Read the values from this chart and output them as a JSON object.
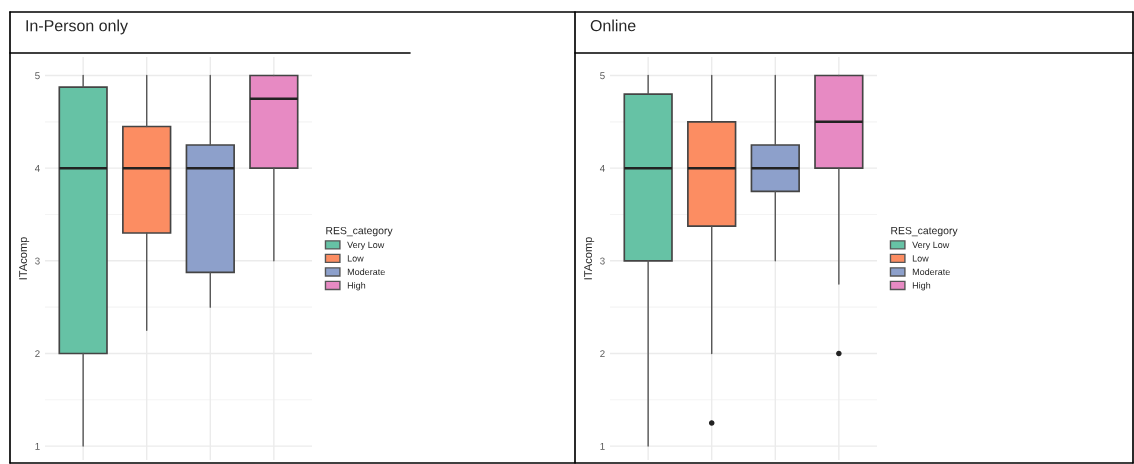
{
  "chart_data": [
    {
      "type": "box",
      "title": "In-Person only",
      "ylabel": "ITAcomp",
      "legend_title": "RES_category",
      "legend": "right",
      "grid": true,
      "ylim": [
        0.85,
        5.2
      ],
      "yticks": [
        1,
        2,
        3,
        4,
        5
      ],
      "tick_labels": "y",
      "categories": [
        null,
        null,
        null,
        null
      ],
      "series": [
        {
          "name": "Very Low",
          "color": "#66c2a5",
          "boxes": [
            {
              "low": 1,
              "q1": 2,
              "median": 4,
              "q3": 4.875,
              "high": 5
            },
            null,
            null,
            null
          ]
        },
        {
          "name": "Low",
          "color": "#fc8d62",
          "boxes": [
            null,
            {
              "low": 2.25,
              "q1": 3.3,
              "median": 4,
              "q3": 4.45,
              "high": 5
            },
            null,
            null
          ]
        },
        {
          "name": "Moderate",
          "color": "#8da0cb",
          "boxes": [
            null,
            null,
            {
              "low": 2.5,
              "q1": 2.875,
              "median": 4,
              "q3": 4.25,
              "high": 5
            },
            null
          ]
        },
        {
          "name": "High",
          "color": "#e78ac3",
          "boxes": [
            null,
            null,
            null,
            {
              "low": 3,
              "q1": 4,
              "median": 4.75,
              "q3": 5,
              "high": 5
            }
          ]
        }
      ]
    },
    {
      "type": "box",
      "title": "Online",
      "ylabel": "ITAcomp",
      "legend_title": "RES_category",
      "legend": "right",
      "grid": true,
      "ylim": [
        0.85,
        5.2
      ],
      "yticks": [
        1,
        2,
        3,
        4,
        5
      ],
      "tick_labels": "y",
      "categories": [
        null,
        null,
        null,
        null
      ],
      "series": [
        {
          "name": "Very Low",
          "color": "#66c2a5",
          "boxes": [
            {
              "low": 1,
              "q1": 3,
              "median": 4,
              "q3": 4.8,
              "high": 5
            },
            null,
            null,
            null
          ]
        },
        {
          "name": "Low",
          "color": "#fc8d62",
          "boxes": [
            null,
            {
              "low": 2,
              "q1": 3.375,
              "median": 4,
              "q3": 4.5,
              "high": 5,
              "outliers": [
                1.25
              ]
            },
            null,
            null
          ]
        },
        {
          "name": "Moderate",
          "color": "#8da0cb",
          "boxes": [
            null,
            null,
            {
              "low": 3,
              "q1": 3.75,
              "median": 4,
              "q3": 4.25,
              "high": 5
            },
            null
          ]
        },
        {
          "name": "High",
          "color": "#e78ac3",
          "boxes": [
            null,
            null,
            null,
            {
              "low": 2.75,
              "q1": 4,
              "median": 4.5,
              "q3": 5,
              "high": 5,
              "outliers": [
                2
              ]
            }
          ]
        }
      ]
    }
  ]
}
